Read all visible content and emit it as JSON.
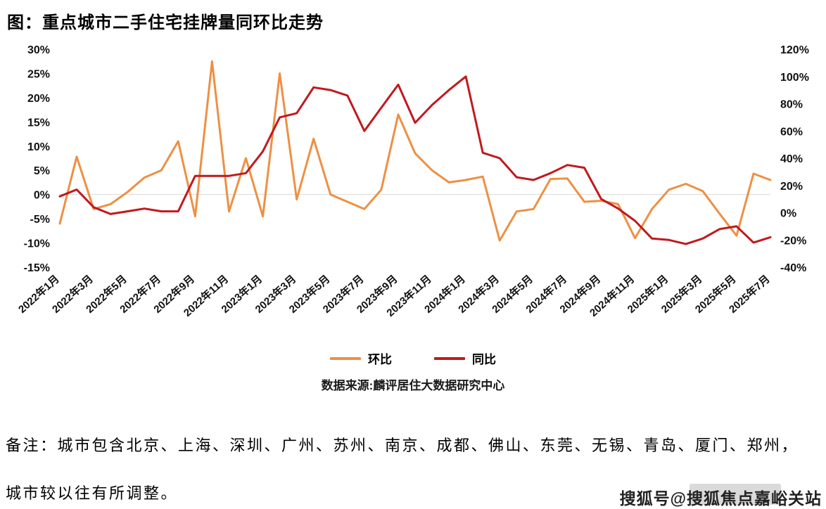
{
  "page": {
    "title": "图：重点城市二手住宅挂牌量同环比走势",
    "source": "数据来源:麟评居住大数据研究中心",
    "note_line1": "备注：城市包含北京、上海、深圳、广州、苏州、南京、成都、佛山、东莞、无锡、青岛、厦门、郑州，",
    "note_line2": "城市较以往有所调整。",
    "watermark": "搜狐号@搜狐焦点嘉峪关站"
  },
  "chart_data": {
    "type": "line",
    "title": "重点城市二手住宅挂牌量同环比走势",
    "legend_position": "bottom",
    "grid": "zero-line-only",
    "x_label_step": 2,
    "months": [
      "2022年1月",
      "2022年2月",
      "2022年3月",
      "2022年4月",
      "2022年5月",
      "2022年6月",
      "2022年7月",
      "2022年8月",
      "2022年9月",
      "2022年10月",
      "2022年11月",
      "2022年12月",
      "2023年1月",
      "2023年2月",
      "2023年3月",
      "2023年4月",
      "2023年5月",
      "2023年6月",
      "2023年7月",
      "2023年8月",
      "2023年9月",
      "2023年10月",
      "2023年11月",
      "2023年12月",
      "2024年1月",
      "2024年2月",
      "2024年3月",
      "2024年4月",
      "2024年5月",
      "2024年6月",
      "2024年7月",
      "2024年8月",
      "2024年9月",
      "2024年10月",
      "2024年11月",
      "2024年12月",
      "2025年1月",
      "2025年2月",
      "2025年3月",
      "2025年4月",
      "2025年5月",
      "2025年6月",
      "2025年7月"
    ],
    "left_axis": {
      "min": -15,
      "max": 30,
      "step": 5,
      "ticks": [
        "30%",
        "25%",
        "20%",
        "15%",
        "10%",
        "5%",
        "0%",
        "-5%",
        "-10%",
        "-15%"
      ]
    },
    "right_axis": {
      "min": -40,
      "max": 120,
      "step": 20,
      "ticks": [
        "120%",
        "100%",
        "80%",
        "60%",
        "40%",
        "20%",
        "0%",
        "-20%",
        "-40%"
      ]
    },
    "series": [
      {
        "name": "环比",
        "axis": "left",
        "color": "#ED9044",
        "unit": "%",
        "values": [
          -6,
          7.8,
          -3,
          -2,
          0.5,
          3.5,
          5,
          11,
          -4.5,
          27.5,
          -3.5,
          7.5,
          -4.5,
          25,
          -1,
          11.5,
          0,
          -1.5,
          -3,
          1,
          16.5,
          8.5,
          5,
          2.5,
          3,
          3.7,
          -9.5,
          -3.5,
          -3,
          3.2,
          3.3,
          -1.5,
          -1.3,
          -2,
          -9,
          -3,
          1,
          2.2,
          0.7,
          -4,
          -8.5,
          4.3,
          3
        ]
      },
      {
        "name": "同比",
        "axis": "right",
        "color": "#C0191F",
        "unit": "%",
        "values": [
          12,
          17,
          4,
          -1,
          1,
          3,
          1,
          1,
          27,
          27,
          27,
          29,
          45,
          70,
          73,
          92,
          90,
          86,
          60,
          77,
          94,
          66,
          79,
          90,
          100,
          44,
          40,
          26,
          24,
          29,
          35,
          33,
          10,
          3,
          -6,
          -19,
          -20,
          -23,
          -19,
          -12,
          -10,
          -22,
          -18
        ]
      }
    ]
  }
}
